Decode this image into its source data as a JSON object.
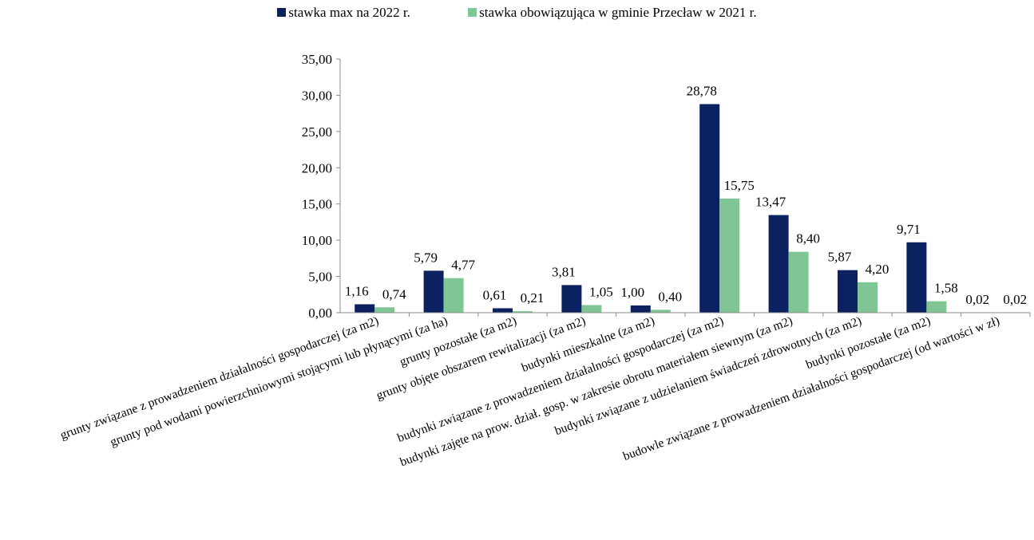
{
  "chart_data": {
    "type": "bar",
    "title": "",
    "xlabel": "",
    "ylabel": "",
    "ylim": [
      0,
      35
    ],
    "yticks": [
      "0,00",
      "5,00",
      "10,00",
      "15,00",
      "20,00",
      "25,00",
      "30,00",
      "35,00"
    ],
    "ytick_values": [
      0,
      5,
      10,
      15,
      20,
      25,
      30,
      35
    ],
    "grid": false,
    "legend_position": "top",
    "categories": [
      "grunty związane z prowadzeniem działalności gospodarczej (za m2)",
      "grunty pod wodami powierzchniowymi stojącymi lub płynącymi (za ha)",
      "grunty pozostałe (za m2)",
      "grunty objęte obszarem rewitalizacji (za m2)",
      "budynki mieszkalne (za m2)",
      "budynki związane z prowadzeniem działalności gospodarczej (za m2)",
      "budynki zajęte na prow. dział. gosp. w zakresie obrotu materiałem siewnym (za m2)",
      "budynki związane z udzielaniem świadczeń zdrowotnych (za m2)",
      "budynki pozostałe (za m2)",
      "budowle związane z prowadzeniem działalności gospodarczej (od wartości w zł)"
    ],
    "series": [
      {
        "name": "stawka max na 2022 r.",
        "color": "#0c2260",
        "values": [
          1.16,
          5.79,
          0.61,
          3.81,
          1.0,
          28.78,
          13.47,
          5.87,
          9.71,
          0.02
        ],
        "labels": [
          "1,16",
          "5,79",
          "0,61",
          "3,81",
          "1,00",
          "28,78",
          "13,47",
          "5,87",
          "9,71",
          "0,02"
        ]
      },
      {
        "name": "stawka obowiązująca w gminie Przecław w 2021 r.",
        "color": "#80c695",
        "values": [
          0.74,
          4.77,
          0.21,
          1.05,
          0.4,
          15.75,
          8.4,
          4.2,
          1.58,
          0.02
        ],
        "labels": [
          "0,74",
          "4,77",
          "0,21",
          "1,05",
          "0,40",
          "15,75",
          "8,40",
          "4,20",
          "1,58",
          "0,02"
        ]
      }
    ]
  }
}
